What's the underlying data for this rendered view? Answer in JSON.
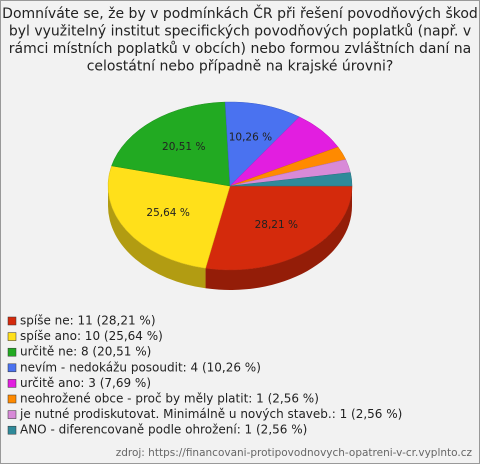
{
  "chart_data": {
    "type": "pie3d",
    "title": [
      "Domníváte se, že by v podmínkách ČR při řešení povodňových škod",
      "byl využitelný institut specifických povodňových poplatků (např. v",
      "rámci místních poplatků v obcích) nebo formou zvláštních daní na",
      "celostátní nebo případně na krajské úrovni?"
    ],
    "categories": [
      "spíše ne: 11 (28,21 %)",
      "spíše ano: 10 (25,64 %)",
      "určitě ne: 8 (20,51 %)",
      "nevím - nedokážu posoudit: 4 (10,26 %)",
      "určitě ano: 3 (7,69 %)",
      "neohrožené obce - proč by měly platit: 1 (2,56 %)",
      "je nutné prodiskutovat. Minimálně u nových staveb.: 1 (2,56 %)",
      "ANO - diferencovaně podle ohrožení: 1 (2,56 %)"
    ],
    "values": [
      28.21,
      25.64,
      20.51,
      10.26,
      7.69,
      2.56,
      2.56,
      2.56
    ],
    "value_labels": [
      "28,21 %",
      "25,64 %",
      "20,51 %",
      "10,26 %",
      null,
      null,
      null,
      null
    ],
    "colors": [
      "#d42a0c",
      "#ffe01a",
      "#22aa22",
      "#4a72f0",
      "#e21ee0",
      "#ff8a00",
      "#d88ad8",
      "#2f8a9a"
    ],
    "source": "zdroj: https://financovani-protipovodnovych-opatreni-v-cr.vyplnto.cz"
  }
}
